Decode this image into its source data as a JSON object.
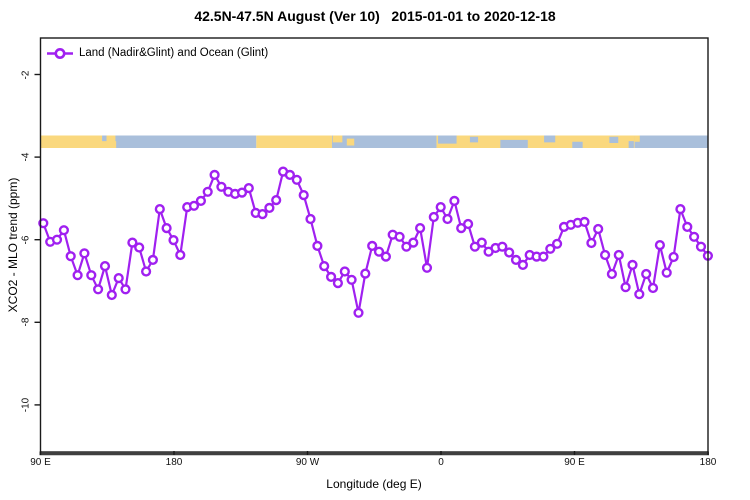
{
  "title": "42.5N-47.5N August (Ver 10)   2015-01-01 to 2020-12-18",
  "legend": {
    "label": "Land (Nadir&Glint) and Ocean (Glint)"
  },
  "axes": {
    "x_label": "Longitude (deg E)",
    "y_label": "XCO2 - MLO trend (ppm)",
    "x_ticks": [
      "90 E",
      "180",
      "90 W",
      "0",
      "90 E",
      "180"
    ],
    "y_ticks": [
      "-2",
      "-4",
      "-6",
      "-8",
      "-10"
    ]
  },
  "colors": {
    "series": "#A020F0",
    "land": "#FAD87E",
    "ocean": "#A9BFDB",
    "box": "#1a1a1a",
    "bottom_axis": "#3f3f3f"
  },
  "chart_data": {
    "type": "line",
    "title": "42.5N-47.5N August (Ver 10)   2015-01-01 to 2020-12-18",
    "xlabel": "Longitude (deg E)",
    "ylabel": "XCO2 - MLO trend (ppm)",
    "x_tick_labels": [
      "90 E",
      "180",
      "90 W",
      "0",
      "90 E",
      "180"
    ],
    "x_tick_lons": [
      90,
      180,
      270,
      360,
      450,
      540
    ],
    "y_tick_values": [
      -2,
      -4,
      -6,
      -8,
      -10
    ],
    "xlim_lon": [
      90,
      540
    ],
    "ylim": [
      -11.1,
      -1.1
    ],
    "grid": false,
    "legend_position": "top-left",
    "marker": "open-circle",
    "lon_start": 91.9,
    "lon_end": 539.9,
    "series": [
      {
        "name": "Land (Nadir&Glint) and Ocean (Glint)",
        "values": [
          -5.6,
          -6.05,
          -6.0,
          -5.77,
          -6.4,
          -6.86,
          -6.33,
          -6.86,
          -7.2,
          -6.64,
          -7.34,
          -6.93,
          -7.2,
          -6.07,
          -6.19,
          -6.77,
          -6.49,
          -5.26,
          -5.72,
          -6.01,
          -6.37,
          -5.21,
          -5.18,
          -5.06,
          -4.84,
          -4.43,
          -4.72,
          -4.84,
          -4.89,
          -4.86,
          -4.75,
          -5.35,
          -5.38,
          -5.23,
          -5.04,
          -4.35,
          -4.43,
          -4.55,
          -4.92,
          -5.5,
          -6.15,
          -6.64,
          -6.9,
          -7.05,
          -6.77,
          -6.97,
          -7.77,
          -6.82,
          -6.15,
          -6.29,
          -6.41,
          -5.88,
          -5.93,
          -6.17,
          -6.07,
          -5.72,
          -6.68,
          -5.45,
          -5.21,
          -5.5,
          -5.06,
          -5.72,
          -5.62,
          -6.17,
          -6.07,
          -6.29,
          -6.2,
          -6.17,
          -6.31,
          -6.49,
          -6.61,
          -6.37,
          -6.41,
          -6.41,
          -6.22,
          -6.1,
          -5.69,
          -5.64,
          -5.59,
          -5.57,
          -6.08,
          -5.74,
          -6.37,
          -6.83,
          -6.37,
          -7.15,
          -6.61,
          -7.32,
          -6.83,
          -7.17,
          -6.13,
          -6.8,
          -6.42,
          -5.26,
          -5.69,
          -5.93,
          -6.17,
          -6.39
        ]
      }
    ],
    "surface_band": {
      "band_y_range_ppm": [
        -3.47,
        -3.78
      ],
      "segments": [
        {
          "surface": "land",
          "from_lon": 90,
          "to_lon": 131.5
        },
        {
          "surface": "ocean",
          "from_lon": 131.5,
          "to_lon": 235.5
        },
        {
          "surface": "land",
          "from_lon": 235.5,
          "to_lon": 286.5
        },
        {
          "surface": "ocean",
          "from_lon": 286.5,
          "to_lon": 357
        },
        {
          "surface": "land",
          "from_lon": 357,
          "to_lon": 490.5
        },
        {
          "surface": "ocean",
          "from_lon": 490.5,
          "to_lon": 540
        }
      ],
      "patches": [
        {
          "surface": "land",
          "from_lon": 130,
          "to_lon": 141,
          "top": 0.45,
          "bottom": 1
        },
        {
          "surface": "land",
          "from_lon": 134.5,
          "to_lon": 140.5,
          "top": 0,
          "bottom": 0.5
        },
        {
          "surface": "land",
          "from_lon": 287,
          "to_lon": 293.5,
          "top": 0,
          "bottom": 0.55
        },
        {
          "surface": "land",
          "from_lon": 296.5,
          "to_lon": 301.5,
          "top": 0.25,
          "bottom": 0.8
        },
        {
          "surface": "ocean",
          "from_lon": 358,
          "to_lon": 370.5,
          "top": 0,
          "bottom": 0.65
        },
        {
          "surface": "ocean",
          "from_lon": 379.5,
          "to_lon": 385,
          "top": 0.1,
          "bottom": 0.55
        },
        {
          "surface": "ocean",
          "from_lon": 400,
          "to_lon": 418.5,
          "top": 0.35,
          "bottom": 1
        },
        {
          "surface": "ocean",
          "from_lon": 429.5,
          "to_lon": 437,
          "top": 0,
          "bottom": 0.55
        },
        {
          "surface": "ocean",
          "from_lon": 448.5,
          "to_lon": 455.5,
          "top": 0.5,
          "bottom": 1
        },
        {
          "surface": "ocean",
          "from_lon": 473.5,
          "to_lon": 479.5,
          "top": 0.1,
          "bottom": 0.6
        },
        {
          "surface": "ocean",
          "from_lon": 486.5,
          "to_lon": 490,
          "top": 0.45,
          "bottom": 1
        },
        {
          "surface": "land",
          "from_lon": 490.5,
          "to_lon": 494,
          "top": 0,
          "bottom": 0.5
        }
      ]
    }
  }
}
